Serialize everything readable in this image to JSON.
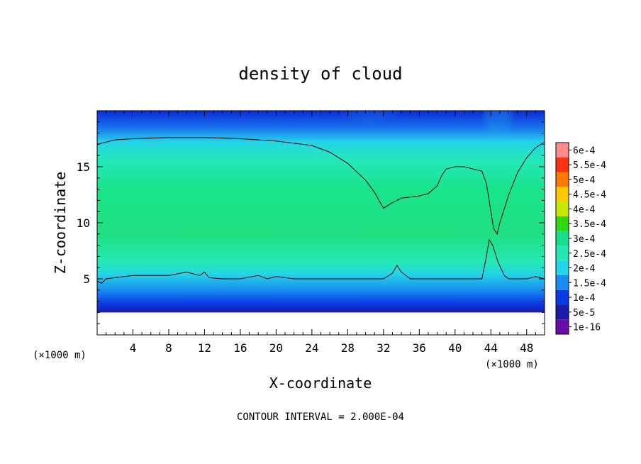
{
  "chart_data": {
    "type": "heatmap",
    "title": "density of cloud",
    "xlabel": "X-coordinate",
    "ylabel": "Z-coordinate",
    "x_unit": "(×1000 m)",
    "y_unit": "(×1000 m)",
    "footer": "CONTOUR INTERVAL = 2.000E-04",
    "xlim": [
      0,
      50
    ],
    "ylim": [
      0,
      20
    ],
    "x_ticks": [
      4,
      8,
      12,
      16,
      20,
      24,
      28,
      32,
      36,
      40,
      44,
      48
    ],
    "y_ticks": [
      5,
      10,
      15
    ],
    "grid": false,
    "colorbar": {
      "labels": [
        "1e-16",
        "5e-5",
        "1e-4",
        "1.5e-4",
        "2e-4",
        "2.5e-4",
        "3e-4",
        "3.5e-4",
        "4e-4",
        "4.5e-4",
        "5e-4",
        "5.5e-4",
        "6e-4"
      ],
      "colors": [
        "#6a0aa8",
        "#1a1aa8",
        "#0a3ae6",
        "#1a8cf0",
        "#24d4e8",
        "#24e8b4",
        "#14e08c",
        "#30d814",
        "#c8e800",
        "#ffc800",
        "#ff7800",
        "#ff3010",
        "#ff8c8c"
      ]
    },
    "contour_level": 0.0002,
    "contour_top_boundary": {
      "x": [
        0,
        2,
        4,
        8,
        12,
        16,
        20,
        24,
        26,
        28,
        30,
        31,
        32,
        33,
        34,
        36,
        37,
        38,
        38.5,
        39,
        40,
        41,
        43,
        43.5,
        44,
        44.3,
        44.7,
        45,
        46,
        47,
        48,
        49,
        50
      ],
      "z": [
        17.0,
        17.4,
        17.5,
        17.6,
        17.6,
        17.5,
        17.3,
        16.9,
        16.3,
        15.3,
        13.8,
        12.7,
        11.3,
        11.8,
        12.2,
        12.4,
        12.6,
        13.3,
        14.2,
        14.8,
        15.0,
        15.0,
        14.6,
        13.5,
        11.0,
        9.5,
        9.0,
        10.0,
        12.5,
        14.5,
        15.8,
        16.7,
        17.2
      ]
    },
    "contour_bottom_boundary": {
      "x": [
        0,
        0.5,
        1,
        2,
        4,
        8,
        10,
        11.5,
        12,
        12.5,
        14,
        16,
        18,
        19,
        20,
        22,
        26,
        30,
        32,
        33,
        33.5,
        34,
        35,
        37,
        40,
        42,
        43,
        43.5,
        43.8,
        44.2,
        44.8,
        45.5,
        46,
        48,
        49,
        50
      ],
      "z": [
        4.8,
        4.6,
        5.0,
        5.1,
        5.3,
        5.3,
        5.6,
        5.3,
        5.6,
        5.1,
        5.0,
        5.0,
        5.3,
        5.0,
        5.2,
        5.0,
        5.0,
        5.0,
        5.0,
        5.5,
        6.2,
        5.6,
        5.0,
        5.0,
        5.0,
        5.0,
        5.0,
        7.0,
        8.5,
        8.0,
        6.5,
        5.3,
        5.0,
        5.0,
        5.2,
        5.0
      ]
    },
    "data_floor_z": 2.0
  }
}
